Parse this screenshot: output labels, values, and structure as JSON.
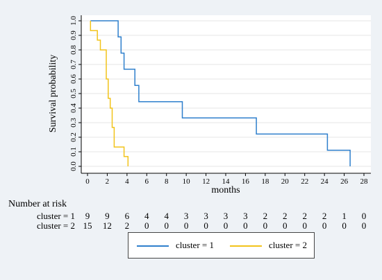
{
  "chart_data": {
    "type": "line",
    "step": true,
    "title": "",
    "xlabel": "months",
    "ylabel": "Survival probability",
    "xlim": [
      0,
      28
    ],
    "ylim": [
      0,
      1
    ],
    "x_ticks": [
      "0",
      "2",
      "4",
      "6",
      "8",
      "10",
      "12",
      "14",
      "16",
      "18",
      "20",
      "22",
      "24",
      "26",
      "28"
    ],
    "y_ticks": [
      "0.0",
      "0.1",
      "0.2",
      "0.3",
      "0.4",
      "0.5",
      "0.6",
      "0.7",
      "0.8",
      "0.9",
      "1.0"
    ],
    "grid": true,
    "series": [
      {
        "name": "cluster = 1",
        "color": "#2e7fcc",
        "points": [
          [
            0.3,
            1.0
          ],
          [
            3.1,
            1.0
          ],
          [
            3.1,
            0.889
          ],
          [
            3.4,
            0.889
          ],
          [
            3.4,
            0.778
          ],
          [
            3.7,
            0.778
          ],
          [
            3.7,
            0.667
          ],
          [
            4.8,
            0.667
          ],
          [
            4.8,
            0.556
          ],
          [
            5.2,
            0.556
          ],
          [
            5.2,
            0.444
          ],
          [
            9.6,
            0.444
          ],
          [
            9.6,
            0.333
          ],
          [
            17.1,
            0.333
          ],
          [
            17.1,
            0.222
          ],
          [
            24.3,
            0.222
          ],
          [
            24.3,
            0.111
          ],
          [
            26.6,
            0.111
          ],
          [
            26.6,
            0.0
          ]
        ]
      },
      {
        "name": "cluster = 2",
        "color": "#f2c31a",
        "points": [
          [
            0.3,
            1.0
          ],
          [
            0.3,
            0.933
          ],
          [
            1.0,
            0.933
          ],
          [
            1.0,
            0.867
          ],
          [
            1.3,
            0.867
          ],
          [
            1.3,
            0.8
          ],
          [
            1.9,
            0.8
          ],
          [
            1.9,
            0.6
          ],
          [
            2.1,
            0.6
          ],
          [
            2.1,
            0.467
          ],
          [
            2.3,
            0.467
          ],
          [
            2.3,
            0.4
          ],
          [
            2.5,
            0.4
          ],
          [
            2.5,
            0.267
          ],
          [
            2.7,
            0.267
          ],
          [
            2.7,
            0.133
          ],
          [
            3.7,
            0.133
          ],
          [
            3.7,
            0.067
          ],
          [
            4.1,
            0.067
          ],
          [
            4.1,
            0.0
          ]
        ]
      }
    ],
    "risk_table": {
      "title": "Number at risk",
      "rows": [
        {
          "label": "cluster = 1",
          "values": [
            "9",
            "9",
            "6",
            "4",
            "4",
            "3",
            "3",
            "3",
            "3",
            "2",
            "2",
            "2",
            "2",
            "1",
            "0"
          ]
        },
        {
          "label": "cluster = 2",
          "values": [
            "15",
            "12",
            "2",
            "0",
            "0",
            "0",
            "0",
            "0",
            "0",
            "0",
            "0",
            "0",
            "0",
            "0",
            "0"
          ]
        }
      ]
    }
  },
  "legend": [
    {
      "label": "cluster = 1",
      "color": "#2e7fcc"
    },
    {
      "label": "cluster = 2",
      "color": "#f2c31a"
    }
  ]
}
